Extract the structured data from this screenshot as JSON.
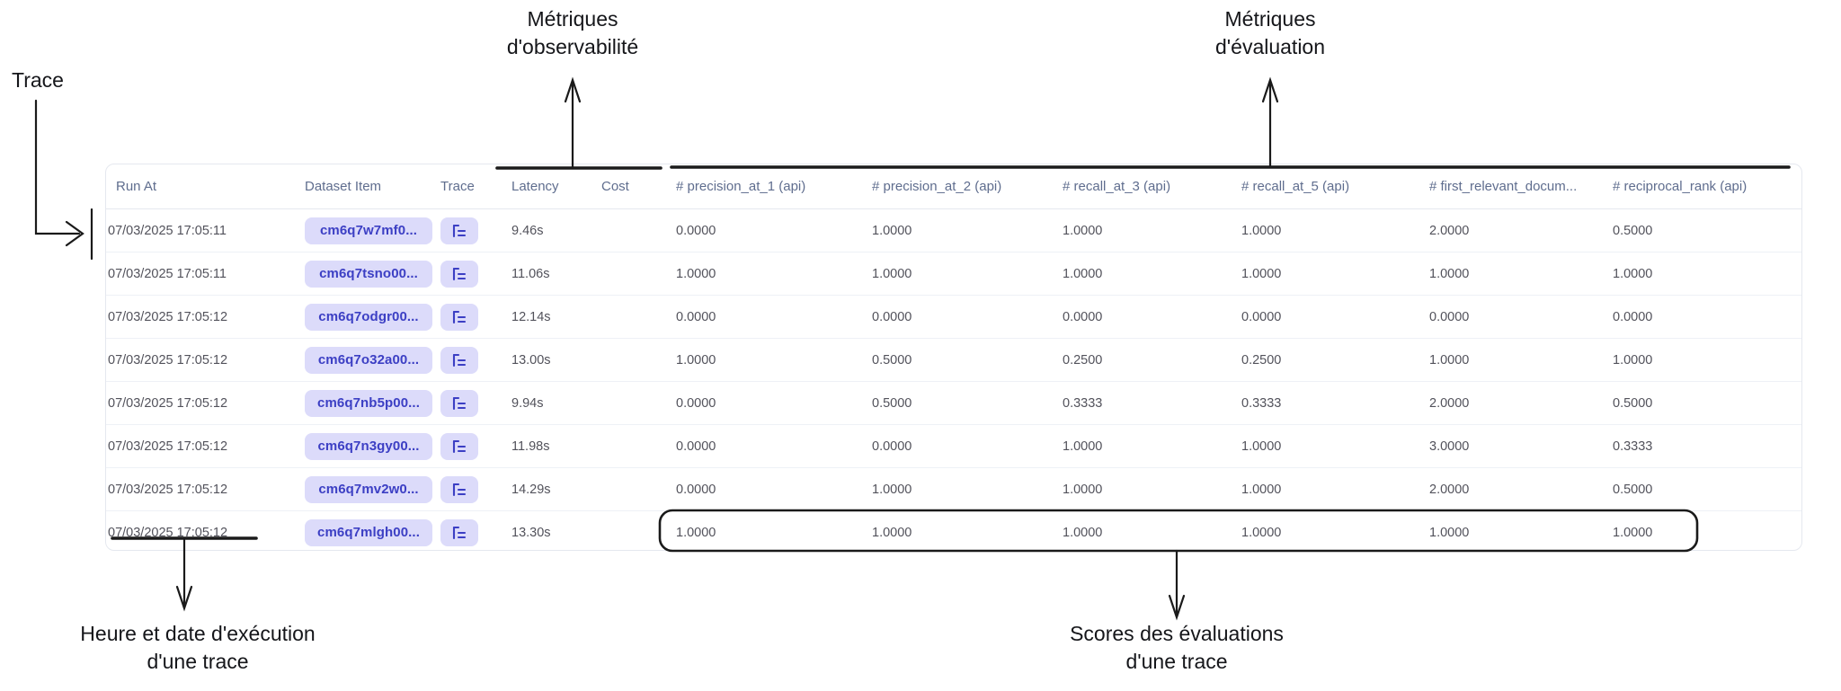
{
  "annotations": {
    "trace": "Trace",
    "observability": {
      "line1": "Métriques",
      "line2": "d'observabilité"
    },
    "evaluation": {
      "line1": "Métriques",
      "line2": "d'évaluation"
    },
    "run_at": {
      "line1": "Heure et date d'exécution",
      "line2": "d'une trace"
    },
    "scores": {
      "line1": "Scores des évaluations",
      "line2": "d'une trace"
    }
  },
  "table": {
    "columns": [
      "Run At",
      "Dataset Item",
      "Trace",
      "Latency",
      "Cost",
      "# precision_at_1 (api)",
      "# precision_at_2 (api)",
      "# recall_at_3 (api)",
      "# recall_at_5 (api)",
      "# first_relevant_docum...",
      "# reciprocal_rank (api)"
    ],
    "rows": [
      {
        "run_at": "07/03/2025 17:05:11",
        "dataset_item": "cm6q7w7mf0...",
        "latency": "9.46s",
        "cost": "",
        "scores": [
          "0.0000",
          "1.0000",
          "1.0000",
          "1.0000",
          "2.0000",
          "0.5000"
        ]
      },
      {
        "run_at": "07/03/2025 17:05:11",
        "dataset_item": "cm6q7tsno00...",
        "latency": "11.06s",
        "cost": "",
        "scores": [
          "1.0000",
          "1.0000",
          "1.0000",
          "1.0000",
          "1.0000",
          "1.0000"
        ]
      },
      {
        "run_at": "07/03/2025 17:05:12",
        "dataset_item": "cm6q7odgr00...",
        "latency": "12.14s",
        "cost": "",
        "scores": [
          "0.0000",
          "0.0000",
          "0.0000",
          "0.0000",
          "0.0000",
          "0.0000"
        ]
      },
      {
        "run_at": "07/03/2025 17:05:12",
        "dataset_item": "cm6q7o32a00...",
        "latency": "13.00s",
        "cost": "",
        "scores": [
          "1.0000",
          "0.5000",
          "0.2500",
          "0.2500",
          "1.0000",
          "1.0000"
        ]
      },
      {
        "run_at": "07/03/2025 17:05:12",
        "dataset_item": "cm6q7nb5p00...",
        "latency": "9.94s",
        "cost": "",
        "scores": [
          "0.0000",
          "0.5000",
          "0.3333",
          "0.3333",
          "2.0000",
          "0.5000"
        ]
      },
      {
        "run_at": "07/03/2025 17:05:12",
        "dataset_item": "cm6q7n3gy00...",
        "latency": "11.98s",
        "cost": "",
        "scores": [
          "0.0000",
          "0.0000",
          "1.0000",
          "1.0000",
          "3.0000",
          "0.3333"
        ]
      },
      {
        "run_at": "07/03/2025 17:05:12",
        "dataset_item": "cm6q7mv2w0...",
        "latency": "14.29s",
        "cost": "",
        "scores": [
          "0.0000",
          "1.0000",
          "1.0000",
          "1.0000",
          "2.0000",
          "0.5000"
        ]
      },
      {
        "run_at": "07/03/2025 17:05:12",
        "dataset_item": "cm6q7mlgh00...",
        "latency": "13.30s",
        "cost": "",
        "scores": [
          "1.0000",
          "1.0000",
          "1.0000",
          "1.0000",
          "1.0000",
          "1.0000"
        ]
      }
    ]
  },
  "icons": {
    "trace_icon": "list-tree-icon"
  },
  "colors": {
    "badge_bg": "#dcdbfa",
    "badge_text": "#3c3fc4",
    "header_text": "#5f6d8e",
    "cell_text": "#52525b",
    "annotation": "#15161a",
    "row_divider": "#eef1f6",
    "card_border": "#e5e8ef"
  }
}
